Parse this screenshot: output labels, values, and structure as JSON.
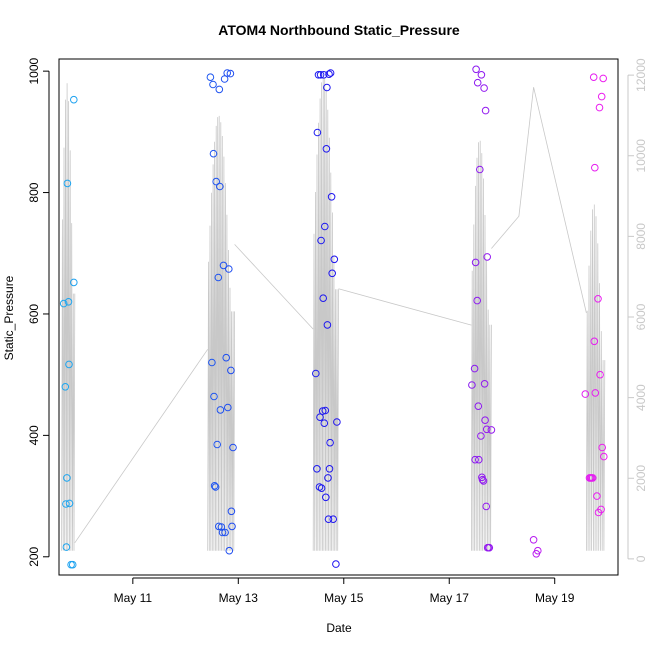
{
  "chart_data": {
    "type": "scatter",
    "title": "ATOM4 Northbound Static_Pressure",
    "xlabel": "Date",
    "ylabel": "Static_Pressure",
    "x_ticks": [
      {
        "day": 11,
        "label": "May 11"
      },
      {
        "day": 13,
        "label": "May 13"
      },
      {
        "day": 15,
        "label": "May 15"
      },
      {
        "day": 17,
        "label": "May 17"
      },
      {
        "day": 19,
        "label": "May 19"
      }
    ],
    "xlim": [
      9.6,
      20.2
    ],
    "ylim": [
      170,
      1020
    ],
    "y_ticks": [
      200,
      400,
      600,
      800,
      1000
    ],
    "y2lim": [
      -400,
      12400
    ],
    "y2_ticks": [
      0,
      2000,
      4000,
      6000,
      8000,
      10000,
      12000
    ],
    "grid": false,
    "colors": {
      "axis": "#000000",
      "secondary_axis": "#c8c8c8",
      "line": "#c8c8c8",
      "point_start": "#1eaaf0",
      "point_mid": "#1e14f0",
      "point_end": "#f01ef0"
    },
    "series": [
      {
        "type": "points",
        "axis": "primary",
        "points": [
          [
            9.69,
            617
          ],
          [
            9.72,
            480
          ],
          [
            9.75,
            330
          ],
          [
            9.73,
            287
          ],
          [
            9.74,
            216
          ],
          [
            9.76,
            815
          ],
          [
            9.78,
            620
          ],
          [
            9.79,
            517
          ],
          [
            9.8,
            288
          ],
          [
            9.83,
            187
          ],
          [
            9.86,
            187
          ],
          [
            9.88,
            652
          ],
          [
            9.88,
            953
          ],
          [
            12.47,
            990
          ],
          [
            12.5,
            520
          ],
          [
            12.52,
            978
          ],
          [
            12.53,
            864
          ],
          [
            12.54,
            464
          ],
          [
            12.55,
            317
          ],
          [
            12.57,
            315
          ],
          [
            12.58,
            818
          ],
          [
            12.6,
            385
          ],
          [
            12.62,
            660
          ],
          [
            12.63,
            250
          ],
          [
            12.64,
            970
          ],
          [
            12.65,
            810
          ],
          [
            12.66,
            442
          ],
          [
            12.68,
            249
          ],
          [
            12.7,
            240
          ],
          [
            12.72,
            680
          ],
          [
            12.74,
            987
          ],
          [
            12.75,
            240
          ],
          [
            12.77,
            528
          ],
          [
            12.79,
            997
          ],
          [
            12.8,
            446
          ],
          [
            12.82,
            674
          ],
          [
            12.83,
            210
          ],
          [
            12.85,
            996
          ],
          [
            12.86,
            507
          ],
          [
            12.87,
            275
          ],
          [
            12.88,
            250
          ],
          [
            12.9,
            380
          ],
          [
            14.47,
            502
          ],
          [
            14.49,
            345
          ],
          [
            14.5,
            899
          ],
          [
            14.52,
            994
          ],
          [
            14.54,
            315
          ],
          [
            14.55,
            430
          ],
          [
            14.56,
            994
          ],
          [
            14.57,
            721
          ],
          [
            14.58,
            313
          ],
          [
            14.6,
            440
          ],
          [
            14.61,
            626
          ],
          [
            14.62,
            994
          ],
          [
            14.63,
            420
          ],
          [
            14.64,
            744
          ],
          [
            14.65,
            441
          ],
          [
            14.66,
            298
          ],
          [
            14.67,
            872
          ],
          [
            14.68,
            973
          ],
          [
            14.69,
            582
          ],
          [
            14.7,
            330
          ],
          [
            14.71,
            262
          ],
          [
            14.72,
            995
          ],
          [
            14.73,
            345
          ],
          [
            14.74,
            388
          ],
          [
            14.75,
            997
          ],
          [
            14.77,
            793
          ],
          [
            14.78,
            667
          ],
          [
            14.8,
            262
          ],
          [
            14.82,
            690
          ],
          [
            14.85,
            188
          ],
          [
            14.87,
            422
          ],
          [
            17.43,
            483
          ],
          [
            17.48,
            510
          ],
          [
            17.49,
            360
          ],
          [
            17.5,
            685
          ],
          [
            17.51,
            1003
          ],
          [
            17.53,
            622
          ],
          [
            17.54,
            981
          ],
          [
            17.55,
            448
          ],
          [
            17.56,
            360
          ],
          [
            17.58,
            838
          ],
          [
            17.6,
            399
          ],
          [
            17.61,
            994
          ],
          [
            17.62,
            331
          ],
          [
            17.63,
            327
          ],
          [
            17.65,
            325
          ],
          [
            17.66,
            972
          ],
          [
            17.67,
            485
          ],
          [
            17.68,
            425
          ],
          [
            17.69,
            935
          ],
          [
            17.7,
            283
          ],
          [
            17.71,
            410
          ],
          [
            17.72,
            694
          ],
          [
            17.73,
            215
          ],
          [
            17.75,
            215
          ],
          [
            17.76,
            215
          ],
          [
            17.8,
            409
          ],
          [
            18.6,
            228
          ],
          [
            18.65,
            205
          ],
          [
            18.68,
            210
          ],
          [
            19.58,
            468
          ],
          [
            19.66,
            330
          ],
          [
            19.68,
            330
          ],
          [
            19.7,
            330
          ],
          [
            19.72,
            330
          ],
          [
            19.74,
            990
          ],
          [
            19.75,
            555
          ],
          [
            19.76,
            841
          ],
          [
            19.77,
            470
          ],
          [
            19.8,
            300
          ],
          [
            19.82,
            625
          ],
          [
            19.83,
            273
          ],
          [
            19.85,
            940
          ],
          [
            19.86,
            500
          ],
          [
            19.88,
            278
          ],
          [
            19.89,
            958
          ],
          [
            19.9,
            380
          ],
          [
            19.92,
            988
          ],
          [
            19.93,
            365
          ]
        ]
      },
      {
        "type": "line",
        "axis": "secondary",
        "description_free": true,
        "segments": [
          {
            "x_start": 9.65,
            "x_end": 9.9,
            "vmin": 200,
            "vmax": 11800,
            "n": 18
          },
          {
            "x_start": 12.42,
            "x_end": 12.93,
            "vmin": 200,
            "vmax": 11000,
            "n": 36
          },
          {
            "x_start": 14.42,
            "x_end": 14.9,
            "vmin": 200,
            "vmax": 12000,
            "n": 34
          },
          {
            "x_start": 17.42,
            "x_end": 17.8,
            "vmin": 200,
            "vmax": 10400,
            "n": 26
          },
          {
            "x_start": 19.6,
            "x_end": 19.95,
            "vmin": 200,
            "vmax": 8800,
            "n": 22
          }
        ],
        "connectors": [
          [
            9.9,
            400
          ],
          [
            12.42,
            5200
          ],
          [
            12.93,
            7800
          ],
          [
            14.42,
            5700
          ],
          [
            14.9,
            6700
          ],
          [
            17.42,
            5800
          ],
          [
            17.8,
            7700
          ],
          [
            18.32,
            8500
          ],
          [
            18.6,
            11700
          ],
          [
            19.6,
            6100
          ]
        ]
      }
    ]
  }
}
